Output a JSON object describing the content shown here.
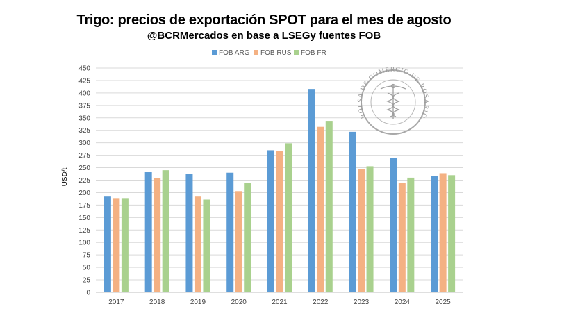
{
  "title": "Trigo: precios de exportación SPOT para el mes de agosto",
  "subtitle": "@BCRMercados en base a LSEGy fuentes FOB",
  "watermark": {
    "text": "BOLSA DE COMERCIO DE ROSARIO",
    "color": "#9a9a9a"
  },
  "chart_data": {
    "type": "bar",
    "title": "Trigo: precios de exportación SPOT para el mes de agosto",
    "subtitle": "@BCRMercados en base a LSEGy fuentes FOB",
    "xlabel": "",
    "ylabel": "USD/t",
    "ylim": [
      0,
      450
    ],
    "ytick_step": 25,
    "ytick_labels": [
      "0",
      "25",
      "50",
      "75",
      "100",
      "125",
      "150",
      "175",
      "200",
      "225",
      "250",
      "275",
      "300",
      "325",
      "350",
      "375",
      "400",
      "425",
      "450"
    ],
    "grid": true,
    "legend_position": "top",
    "categories": [
      "2017",
      "2018",
      "2019",
      "2020",
      "2021",
      "2022",
      "2023",
      "2024",
      "2025"
    ],
    "series": [
      {
        "name": "FOB ARG",
        "color": "#5b9bd5",
        "values": [
          192,
          241,
          238,
          240,
          285,
          408,
          322,
          270,
          233
        ]
      },
      {
        "name": "FOB RUS",
        "color": "#f4b183",
        "values": [
          189,
          229,
          192,
          203,
          284,
          332,
          248,
          220,
          239
        ]
      },
      {
        "name": "FOB FR",
        "color": "#a9d18e",
        "values": [
          189,
          245,
          186,
          219,
          299,
          344,
          253,
          230,
          235
        ]
      }
    ]
  }
}
